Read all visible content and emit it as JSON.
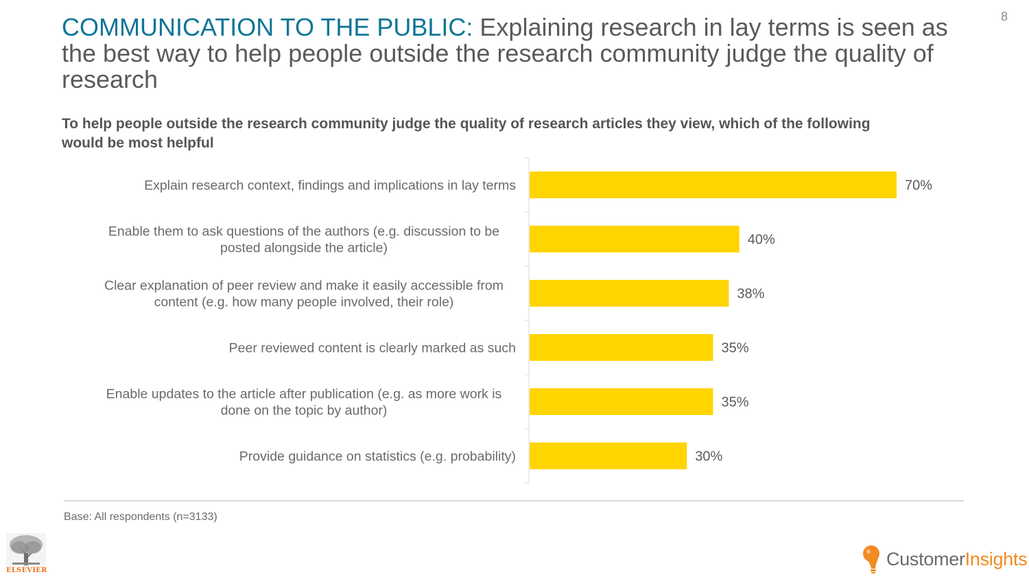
{
  "page": {
    "number": "8",
    "title_accent": "COMMUNICATION TO THE PUBLIC:",
    "title_rest": "Explaining research in lay terms is seen as the best way to help people outside the research community judge the quality of research",
    "question": "To help people outside the research community judge the quality of research articles they view, which of the following would be most helpful",
    "base_note": "Base: All respondents (n=3133)",
    "logos": {
      "left": "ELSEVIER",
      "right_part1": "Customer",
      "right_part2": "Insights"
    }
  },
  "colors": {
    "bar": "#FFD500",
    "title_accent": "#0E7596",
    "text": "#5A5A5A",
    "logo_orange": "#F28B22"
  },
  "chart_data": {
    "type": "bar",
    "orientation": "horizontal",
    "categories": [
      [
        "Explain research context, findings and implications in lay terms"
      ],
      [
        "Enable them to ask questions of the authors (e.g. discussion to be",
        "posted alongside the article)"
      ],
      [
        "Clear explanation of peer review and make it easily accessible from",
        "content (e.g. how many people involved, their role)"
      ],
      [
        "Peer reviewed content is clearly marked as such"
      ],
      [
        "Enable updates to the article after publication (e.g. as more work is",
        "done on the topic by author)"
      ],
      [
        "Provide guidance on statistics (e.g. probability)"
      ]
    ],
    "values": [
      70,
      40,
      38,
      35,
      35,
      30
    ],
    "value_labels": [
      "70%",
      "40%",
      "38%",
      "35%",
      "35%",
      "30%"
    ],
    "xlim": [
      0,
      100
    ],
    "grid": false,
    "legend": "none"
  }
}
